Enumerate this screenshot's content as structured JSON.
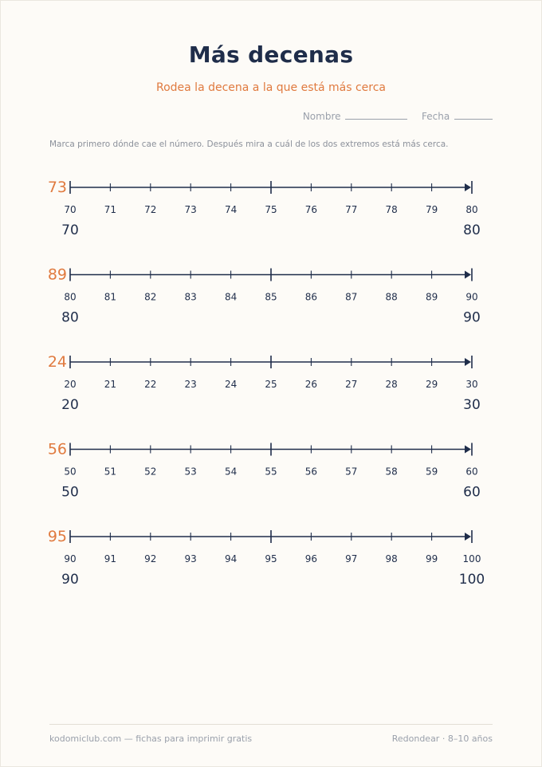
{
  "title": "Más decenas",
  "subtitle": "Rodea la decena a la que está más cerca",
  "meta": {
    "name_label": "Nombre",
    "date_label": "Fecha"
  },
  "instructions": "Marca primero dónde cae el número. Después mira a cuál de los dos extremos está más cerca.",
  "colors": {
    "ink": "#1f2d4a",
    "accent": "#e07a3f",
    "muted": "#9aa0ab"
  },
  "exercises": [
    {
      "target": "73",
      "ticks": [
        "70",
        "71",
        "72",
        "73",
        "74",
        "75",
        "76",
        "77",
        "78",
        "79",
        "80"
      ],
      "low": "70",
      "high": "80"
    },
    {
      "target": "89",
      "ticks": [
        "80",
        "81",
        "82",
        "83",
        "84",
        "85",
        "86",
        "87",
        "88",
        "89",
        "90"
      ],
      "low": "80",
      "high": "90"
    },
    {
      "target": "24",
      "ticks": [
        "20",
        "21",
        "22",
        "23",
        "24",
        "25",
        "26",
        "27",
        "28",
        "29",
        "30"
      ],
      "low": "20",
      "high": "30"
    },
    {
      "target": "56",
      "ticks": [
        "50",
        "51",
        "52",
        "53",
        "54",
        "55",
        "56",
        "57",
        "58",
        "59",
        "60"
      ],
      "low": "50",
      "high": "60"
    },
    {
      "target": "95",
      "ticks": [
        "90",
        "91",
        "92",
        "93",
        "94",
        "95",
        "96",
        "97",
        "98",
        "99",
        "100"
      ],
      "low": "90",
      "high": "100"
    }
  ],
  "footer": {
    "left": "kodomiclub.com — fichas para imprimir gratis",
    "right": "Redondear · 8–10 años"
  }
}
